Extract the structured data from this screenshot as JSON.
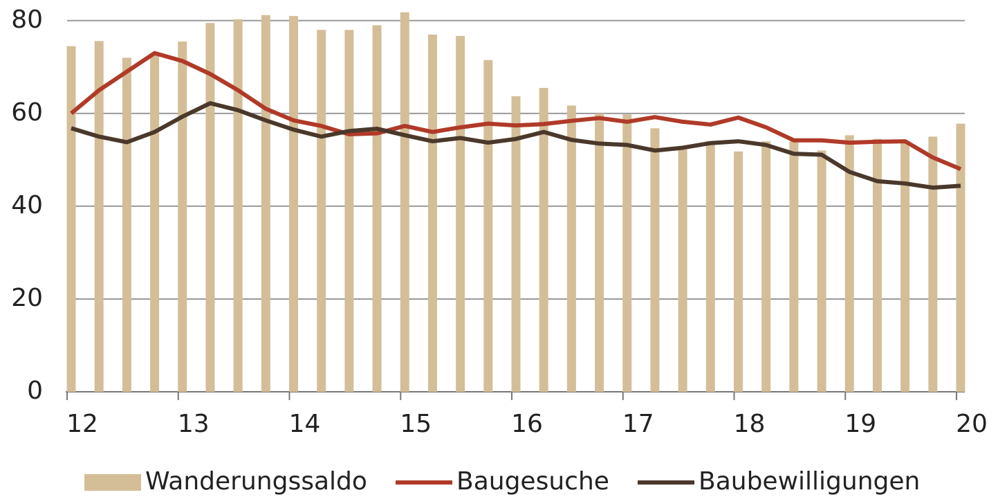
{
  "chart_data": {
    "type": "bar-line",
    "x": [
      12,
      12.25,
      12.5,
      12.75,
      13,
      13.25,
      13.5,
      13.75,
      14,
      14.25,
      14.5,
      14.75,
      15,
      15.25,
      15.5,
      15.75,
      16,
      16.25,
      16.5,
      16.75,
      17,
      17.25,
      17.5,
      17.75,
      18,
      18.25,
      18.5,
      18.75,
      19,
      19.25,
      19.5,
      19.75,
      20
    ],
    "series": [
      {
        "name": "Wanderungssaldo",
        "kind": "bar",
        "color": "#d4be98",
        "values": [
          74.5,
          75.6,
          72,
          73,
          75.5,
          79.5,
          80.3,
          81.2,
          81,
          78,
          78,
          79,
          81.8,
          77,
          76.7,
          71.5,
          63.7,
          65.5,
          61.7,
          60,
          59.8,
          56.8,
          53,
          54,
          51.8,
          54,
          54,
          52,
          55.3,
          54.5,
          54,
          55,
          57.8
        ]
      },
      {
        "name": "Baugesuche",
        "kind": "line",
        "color": "#b03a28",
        "values": [
          60,
          65,
          69,
          73,
          71.3,
          68.5,
          65,
          61,
          58.5,
          57.3,
          55.5,
          55.7,
          57.3,
          56,
          57,
          57.8,
          57.4,
          57.7,
          58.4,
          59,
          58.2,
          59.2,
          58.2,
          57.6,
          59.1,
          57,
          54.2,
          54.2,
          53.7,
          53.9,
          54,
          50.5,
          48
        ]
      },
      {
        "name": "Baubewilligungen",
        "kind": "line",
        "color": "#4a382b",
        "values": [
          56.8,
          55,
          53.8,
          56,
          59.3,
          62.2,
          60.7,
          58.5,
          56.5,
          55,
          56.2,
          56.7,
          55.3,
          54,
          54.7,
          53.7,
          54.5,
          56,
          54.3,
          53.5,
          53.2,
          52,
          52.6,
          53.6,
          54,
          53.2,
          51.3,
          51.1,
          47.4,
          45.4,
          44.9,
          44,
          44.4
        ]
      }
    ],
    "xlim": [
      12,
      20
    ],
    "xticks": [
      12,
      13,
      14,
      15,
      16,
      17,
      18,
      19,
      20
    ],
    "ylim": [
      0,
      84
    ],
    "yticks": [
      0,
      20,
      40,
      60,
      80
    ],
    "grid": true,
    "legend": "bottom"
  }
}
